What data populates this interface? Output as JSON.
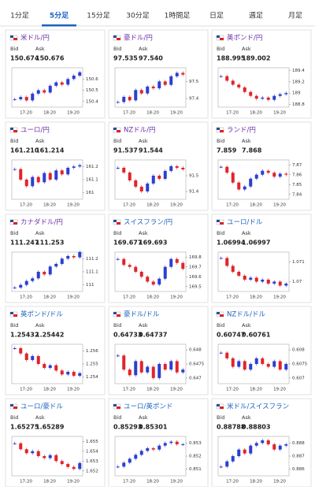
{
  "tabs": [
    "1分足",
    "5分足",
    "15分足",
    "30分足",
    "1時間足",
    "日足",
    "週足",
    "月足"
  ],
  "active_tab": 1,
  "bid_label": "Bid",
  "ask_label": "Ask",
  "x_labels": [
    "17:20",
    "18:20",
    "19:20"
  ],
  "cards": [
    {
      "name": "米ドル/円",
      "name_color": "#6b2fa8",
      "bid": "150.674",
      "ask": "150.676",
      "ylim": [
        150.35,
        150.7
      ],
      "yticks": [
        150.4,
        150.5,
        150.6
      ],
      "prices": [
        150.42,
        150.44,
        150.41,
        150.47,
        150.5,
        150.48,
        150.54,
        150.57,
        150.55,
        150.6,
        150.63,
        150.66
      ]
    },
    {
      "name": "豪ドル/円",
      "name_color": "#6b2fa8",
      "bid": "97.535",
      "ask": "97.540",
      "ylim": [
        97.35,
        97.58
      ],
      "yticks": [
        97.4,
        97.5
      ],
      "prices": [
        97.38,
        97.41,
        97.39,
        97.45,
        97.43,
        97.47,
        97.46,
        97.5,
        97.48,
        97.53,
        97.55,
        97.54
      ]
    },
    {
      "name": "英ポンド/円",
      "name_color": "#6b2fa8",
      "bid": "188.995",
      "ask": "189.002",
      "ylim": [
        188.75,
        189.45
      ],
      "yticks": [
        188.8,
        189,
        189.2,
        189.4
      ],
      "prices": [
        189.3,
        189.22,
        189.15,
        189.1,
        189.02,
        188.95,
        188.9,
        188.92,
        188.88,
        188.95,
        188.98,
        189.0
      ]
    },
    {
      "name": "ユーロ/円",
      "name_color": "#6b2fa8",
      "bid": "161.210",
      "ask": "161.214",
      "ylim": [
        160.95,
        161.25
      ],
      "yticks": [
        161,
        161.1,
        161.2
      ],
      "prices": [
        161.18,
        161.1,
        161.05,
        161.12,
        161.08,
        161.15,
        161.1,
        161.17,
        161.14,
        161.19,
        161.2,
        161.21
      ]
    },
    {
      "name": "NZドル/円",
      "name_color": "#6b2fa8",
      "bid": "91.537",
      "ask": "91.544",
      "ylim": [
        91.35,
        91.6
      ],
      "yticks": [
        91.4,
        91.5
      ],
      "prices": [
        91.55,
        91.52,
        91.47,
        91.43,
        91.4,
        91.45,
        91.5,
        91.48,
        91.53,
        91.56,
        91.55,
        91.54
      ]
    },
    {
      "name": "ランド/円",
      "name_color": "#6b2fa8",
      "bid": "7.859",
      "ask": "7.868",
      "ylim": [
        7.835,
        7.875
      ],
      "yticks": [
        7.84,
        7.85,
        7.86,
        7.87
      ],
      "prices": [
        7.868,
        7.862,
        7.852,
        7.845,
        7.848,
        7.856,
        7.86,
        7.864,
        7.862,
        7.858,
        7.861,
        7.86
      ]
    },
    {
      "name": "カナダドル/円",
      "name_color": "#6b2fa8",
      "bid": "111.247",
      "ask": "111.253",
      "ylim": [
        110.95,
        111.25
      ],
      "yticks": [
        111,
        111.1,
        111.2
      ],
      "prices": [
        110.98,
        111.0,
        111.03,
        111.05,
        111.1,
        111.08,
        111.14,
        111.16,
        111.2,
        111.22,
        111.21,
        111.25
      ]
    },
    {
      "name": "スイスフラン/円",
      "name_color": "#1a62c0",
      "bid": "169.677",
      "ask": "169.693",
      "ylim": [
        169.45,
        169.85
      ],
      "yticks": [
        169.5,
        169.6,
        169.7,
        169.8
      ],
      "prices": [
        169.78,
        169.72,
        169.7,
        169.65,
        169.6,
        169.55,
        169.52,
        169.58,
        169.7,
        169.78,
        169.74,
        169.68
      ]
    },
    {
      "name": "ユーロ/ドル",
      "name_color": "#1a62c0",
      "bid": "1.06994",
      "ask": "1.06997",
      "ylim": [
        1.0695,
        1.0715
      ],
      "yticks": [
        1.07,
        1.071
      ],
      "prices": [
        1.0712,
        1.0708,
        1.0705,
        1.0703,
        1.0701,
        1.0702,
        1.07,
        1.0701,
        1.0699,
        1.07,
        1.0698,
        1.0699
      ]
    },
    {
      "name": "英ポンド/ドル",
      "name_color": "#1a62c0",
      "bid": "1.25432",
      "ask": "1.25442",
      "ylim": [
        1.2535,
        1.2565
      ],
      "yticks": [
        1.254,
        1.255,
        1.256
      ],
      "prices": [
        1.2562,
        1.2558,
        1.2553,
        1.2556,
        1.255,
        1.2547,
        1.2549,
        1.2545,
        1.2542,
        1.2544,
        1.2541,
        1.2543
      ]
    },
    {
      "name": "豪ドル/ドル",
      "name_color": "#1a62c0",
      "bid": "0.64733",
      "ask": "0.64737",
      "ylim": [
        0.6468,
        0.6482
      ],
      "yticks": [
        0.647,
        0.6475,
        0.648
      ],
      "prices": [
        0.6478,
        0.6473,
        0.6471,
        0.6476,
        0.6472,
        0.6474,
        0.647,
        0.6475,
        0.6473,
        0.6476,
        0.6472,
        0.6473
      ]
    },
    {
      "name": "NZドル/ドル",
      "name_color": "#1a62c0",
      "bid": "0.60747",
      "ask": "0.60761",
      "ylim": [
        0.6068,
        0.6082
      ],
      "yticks": [
        0.607,
        0.6075,
        0.608
      ],
      "prices": [
        0.6079,
        0.6077,
        0.6074,
        0.6076,
        0.6073,
        0.6075,
        0.6077,
        0.6075,
        0.6074,
        0.6076,
        0.6073,
        0.6075
      ]
    },
    {
      "name": "ユーロ/豪ドル",
      "name_color": "#1a62c0",
      "bid": "1.65275",
      "ask": "1.65289",
      "ylim": [
        1.6515,
        1.6555
      ],
      "yticks": [
        1.652,
        1.653,
        1.654,
        1.655
      ],
      "prices": [
        1.6548,
        1.6542,
        1.6538,
        1.654,
        1.6535,
        1.6533,
        1.6536,
        1.653,
        1.6527,
        1.6524,
        1.6522,
        1.6528
      ]
    },
    {
      "name": "ユーロ/英ポンド",
      "name_color": "#1a62c0",
      "bid": "0.85293",
      "ask": "0.85301",
      "ylim": [
        0.8505,
        0.8535
      ],
      "yticks": [
        0.851,
        0.852,
        0.853
      ],
      "prices": [
        0.8512,
        0.8515,
        0.8518,
        0.8521,
        0.8524,
        0.8526,
        0.8525,
        0.8528,
        0.853,
        0.8531,
        0.8529,
        0.8529
      ]
    },
    {
      "name": "米ドル/スイスフラン",
      "name_color": "#1a62c0",
      "bid": "0.88788",
      "ask": "0.88803",
      "ylim": [
        0.8855,
        0.8885
      ],
      "yticks": [
        0.886,
        0.887,
        0.888
      ],
      "prices": [
        0.8862,
        0.8866,
        0.887,
        0.8875,
        0.8872,
        0.8878,
        0.888,
        0.8882,
        0.8879,
        0.8875,
        0.8878,
        0.8879
      ]
    }
  ]
}
